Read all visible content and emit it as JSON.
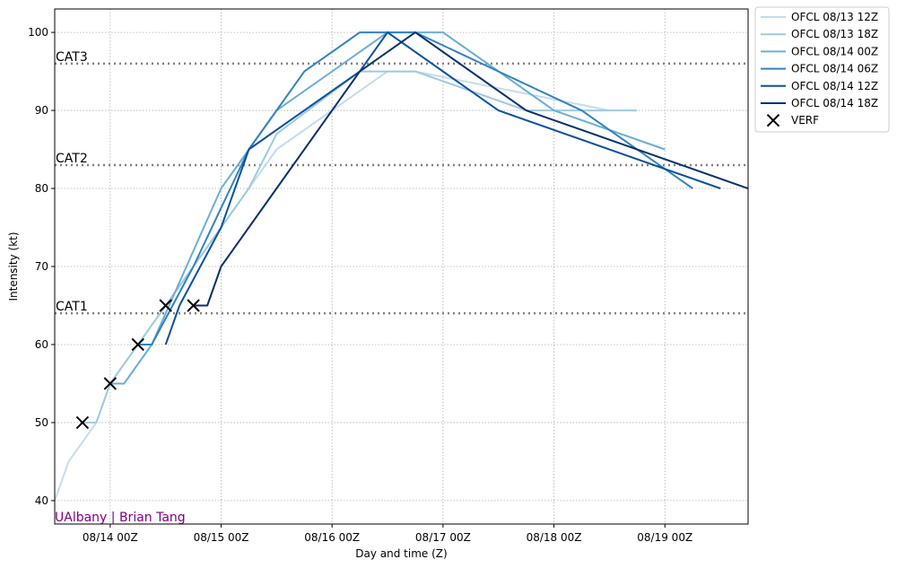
{
  "chart_data": {
    "type": "line",
    "title": "",
    "xlabel": "Day and time (Z)",
    "ylabel": "Intensity (kt)",
    "xlim": [
      "08/13 12Z",
      "08/19 18Z"
    ],
    "ylim": [
      37,
      103
    ],
    "grid": true,
    "legend_position": "outside-top-right",
    "x_ticks": [
      {
        "x": "08/14 00Z",
        "label": "08/14 00Z"
      },
      {
        "x": "08/15 00Z",
        "label": "08/15 00Z"
      },
      {
        "x": "08/16 00Z",
        "label": "08/16 00Z"
      },
      {
        "x": "08/17 00Z",
        "label": "08/17 00Z"
      },
      {
        "x": "08/18 00Z",
        "label": "08/18 00Z"
      },
      {
        "x": "08/19 00Z",
        "label": "08/19 00Z"
      }
    ],
    "y_ticks": [
      40,
      50,
      60,
      70,
      80,
      90,
      100
    ],
    "thresholds": [
      {
        "label": "CAT1",
        "value": 64
      },
      {
        "label": "CAT2",
        "value": 83
      },
      {
        "label": "CAT3",
        "value": 96
      }
    ],
    "series": [
      {
        "name": "OFCL 08/13 12Z",
        "color": "#c6dbef",
        "points": [
          [
            "08/13 12Z",
            40
          ],
          [
            "08/13 15Z",
            45
          ],
          [
            "08/13 21Z",
            50
          ],
          [
            "08/14 00Z",
            55
          ],
          [
            "08/14 12Z",
            65
          ],
          [
            "08/15 00Z",
            75
          ],
          [
            "08/15 12Z",
            85
          ],
          [
            "08/16 12Z",
            95
          ],
          [
            "08/16 18Z",
            95
          ],
          [
            "08/18 12Z",
            90
          ]
        ]
      },
      {
        "name": "OFCL 08/13 18Z",
        "color": "#9ecae1",
        "points": [
          [
            "08/13 18Z",
            50
          ],
          [
            "08/13 21Z",
            50
          ],
          [
            "08/14 00Z",
            55
          ],
          [
            "08/14 06Z",
            60
          ],
          [
            "08/14 18Z",
            70
          ],
          [
            "08/15 06Z",
            80
          ],
          [
            "08/15 12Z",
            87
          ],
          [
            "08/16 06Z",
            95
          ],
          [
            "08/16 18Z",
            95
          ],
          [
            "08/17 18Z",
            90
          ],
          [
            "08/18 18Z",
            90
          ]
        ]
      },
      {
        "name": "OFCL 08/14 00Z",
        "color": "#6baed6",
        "points": [
          [
            "08/14 00Z",
            55
          ],
          [
            "08/14 03Z",
            55
          ],
          [
            "08/14 09Z",
            60
          ],
          [
            "08/15 00Z",
            80
          ],
          [
            "08/15 12Z",
            90
          ],
          [
            "08/16 12Z",
            100
          ],
          [
            "08/17 00Z",
            100
          ],
          [
            "08/18 00Z",
            90
          ],
          [
            "08/19 00Z",
            85
          ]
        ]
      },
      {
        "name": "OFCL 08/14 06Z",
        "color": "#3182bd",
        "points": [
          [
            "08/14 06Z",
            60
          ],
          [
            "08/14 09Z",
            60
          ],
          [
            "08/14 18Z",
            70
          ],
          [
            "08/15 06Z",
            85
          ],
          [
            "08/15 18Z",
            95
          ],
          [
            "08/16 06Z",
            100
          ],
          [
            "08/16 18Z",
            100
          ],
          [
            "08/17 12Z",
            95
          ],
          [
            "08/18 06Z",
            90
          ],
          [
            "08/19 06Z",
            80
          ]
        ]
      },
      {
        "name": "OFCL 08/14 12Z",
        "color": "#08519c",
        "points": [
          [
            "08/14 12Z",
            60
          ],
          [
            "08/14 15Z",
            65
          ],
          [
            "08/15 00Z",
            75
          ],
          [
            "08/15 06Z",
            85
          ],
          [
            "08/16 06Z",
            95
          ],
          [
            "08/16 12Z",
            100
          ],
          [
            "08/17 12Z",
            90
          ],
          [
            "08/19 12Z",
            80
          ]
        ]
      },
      {
        "name": "OFCL 08/14 18Z",
        "color": "#08306b",
        "points": [
          [
            "08/14 18Z",
            65
          ],
          [
            "08/14 21Z",
            65
          ],
          [
            "08/15 00Z",
            70
          ],
          [
            "08/15 06Z",
            75
          ],
          [
            "08/16 06Z",
            95
          ],
          [
            "08/16 18Z",
            100
          ],
          [
            "08/17 18Z",
            90
          ],
          [
            "08/19 18Z",
            80
          ]
        ]
      }
    ],
    "verification": {
      "name": "VERF",
      "marker": "x",
      "color": "#000000",
      "points": [
        [
          "08/13 18Z",
          50
        ],
        [
          "08/14 00Z",
          55
        ],
        [
          "08/14 06Z",
          60
        ],
        [
          "08/14 12Z",
          65
        ],
        [
          "08/14 18Z",
          65
        ]
      ]
    },
    "annotation": {
      "text": "UAlbany | Brian Tang",
      "color": "#800080"
    }
  }
}
